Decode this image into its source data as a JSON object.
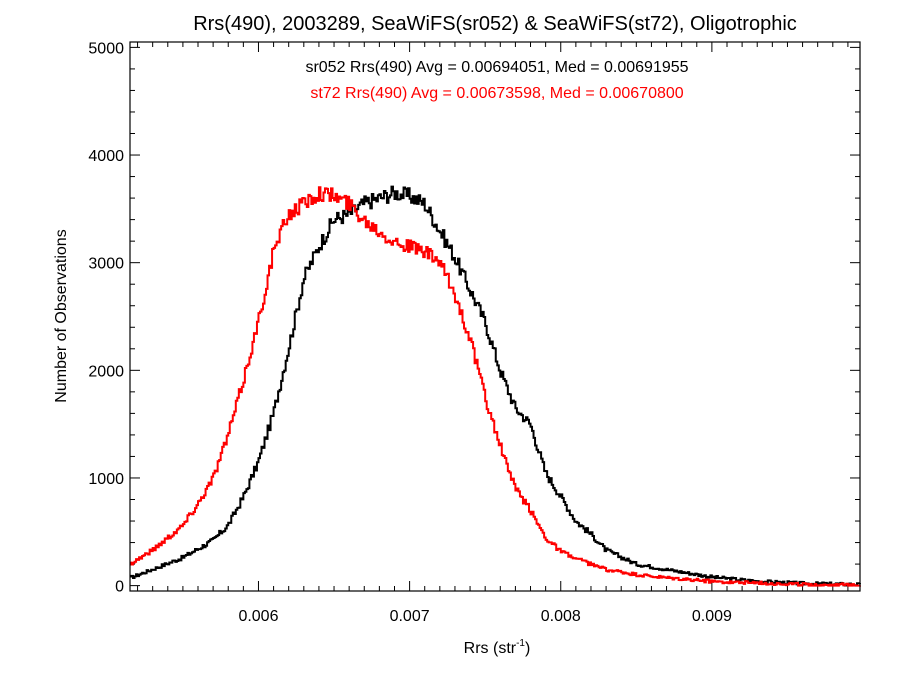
{
  "chart_data": {
    "type": "line",
    "title": "Rrs(490), 2003289, SeaWiFS(sr052) & SeaWiFS(st72), Oligotrophic",
    "xlabel_main": "Rrs (str",
    "xlabel_sup": "-1",
    "xlabel_end": ")",
    "ylabel": "Number of Observations",
    "xlim": [
      0.00515,
      0.00998
    ],
    "ylim": [
      -50,
      5050
    ],
    "x_ticks": [
      0.006,
      0.007,
      0.008,
      0.009
    ],
    "x_tick_labels": [
      "0.006",
      "0.007",
      "0.008",
      "0.009"
    ],
    "y_ticks": [
      0,
      1000,
      2000,
      3000,
      4000,
      5000
    ],
    "y_tick_labels": [
      "0",
      "1000",
      "2000",
      "3000",
      "4000",
      "5000"
    ],
    "grid": false,
    "annotations": [
      {
        "text": "sr052 Rrs(490) Avg = 0.00694051, Med = 0.00691955",
        "color": "#000000"
      },
      {
        "text": "st72 Rrs(490) Avg = 0.00673598, Med = 0.00670800",
        "color": "#ff0000"
      }
    ],
    "series": [
      {
        "color": "#000000",
        "x": [
          0.00515,
          0.0053,
          0.0055,
          0.0057,
          0.0058,
          0.0059,
          0.006,
          0.0061,
          0.0062,
          0.0063,
          0.0064,
          0.0065,
          0.0066,
          0.0067,
          0.0068,
          0.0069,
          0.007,
          0.0071,
          0.0072,
          0.0073,
          0.0074,
          0.0075,
          0.0076,
          0.0077,
          0.0078,
          0.0079,
          0.008,
          0.0081,
          0.0082,
          0.0083,
          0.0085,
          0.0087,
          0.009,
          0.0093,
          0.0096,
          0.00998
        ],
        "y": [
          70,
          150,
          260,
          420,
          560,
          820,
          1150,
          1600,
          2200,
          2850,
          3150,
          3400,
          3450,
          3550,
          3600,
          3650,
          3620,
          3550,
          3300,
          3050,
          2750,
          2450,
          2000,
          1650,
          1500,
          1050,
          830,
          600,
          480,
          330,
          200,
          150,
          80,
          40,
          20,
          10
        ]
      },
      {
        "color": "#ff0000",
        "x": [
          0.00515,
          0.0053,
          0.0055,
          0.0056,
          0.0057,
          0.0058,
          0.0059,
          0.006,
          0.0061,
          0.0062,
          0.0063,
          0.0064,
          0.0065,
          0.0066,
          0.0067,
          0.0068,
          0.0069,
          0.007,
          0.0071,
          0.0072,
          0.0073,
          0.0074,
          0.0075,
          0.0076,
          0.0077,
          0.0078,
          0.0079,
          0.008,
          0.0081,
          0.0082,
          0.0083,
          0.0085,
          0.0087,
          0.009,
          0.0093,
          0.0096,
          0.00998
        ],
        "y": [
          200,
          330,
          560,
          760,
          1000,
          1400,
          1900,
          2450,
          3100,
          3450,
          3550,
          3650,
          3620,
          3550,
          3400,
          3300,
          3200,
          3150,
          3100,
          3000,
          2700,
          2300,
          1750,
          1300,
          900,
          700,
          450,
          320,
          250,
          200,
          150,
          100,
          70,
          40,
          25,
          10,
          5
        ]
      }
    ]
  }
}
